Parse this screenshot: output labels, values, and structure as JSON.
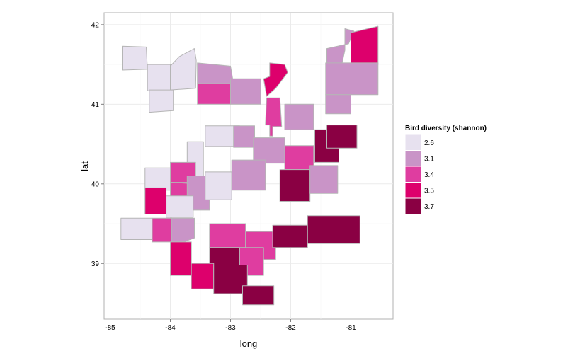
{
  "chart_data": {
    "type": "choropleth",
    "xlabel": "long",
    "ylabel": "lat",
    "xlim": [
      -85.1,
      -80.3
    ],
    "ylim": [
      38.3,
      42.15
    ],
    "x_ticks": [
      "-85",
      "-84",
      "-83",
      "-82",
      "-81"
    ],
    "y_ticks": [
      "39",
      "40",
      "41",
      "42"
    ],
    "x_tick_values": [
      -85,
      -84,
      -83,
      -82,
      -81
    ],
    "y_tick_values": [
      39,
      40,
      41,
      42
    ],
    "grid": true,
    "legend": {
      "title": "Bird diversity (shannon)",
      "placement": "right",
      "entries": [
        {
          "label": "2.6",
          "color": "#e7e1ef"
        },
        {
          "label": "3.1",
          "color": "#c994c7"
        },
        {
          "label": "3.4",
          "color": "#df3da0"
        },
        {
          "label": "3.5",
          "color": "#dd006c"
        },
        {
          "label": "3.7",
          "color": "#8a0043"
        }
      ]
    },
    "regions": [
      {
        "value": "2.6",
        "coords": [
          [
            -84.8,
            41.73
          ],
          [
            -84.4,
            41.72
          ],
          [
            -84.38,
            41.44
          ],
          [
            -84.8,
            41.43
          ]
        ]
      },
      {
        "value": "2.6",
        "coords": [
          [
            -84.38,
            41.5
          ],
          [
            -84.0,
            41.5
          ],
          [
            -84.0,
            41.17
          ],
          [
            -84.38,
            41.17
          ]
        ]
      },
      {
        "value": "2.6",
        "coords": [
          [
            -84.0,
            41.48
          ],
          [
            -83.85,
            41.6
          ],
          [
            -83.6,
            41.7
          ],
          [
            -83.57,
            41.55
          ],
          [
            -83.58,
            41.2
          ],
          [
            -84.0,
            41.18
          ]
        ]
      },
      {
        "value": "2.6",
        "coords": [
          [
            -84.35,
            41.18
          ],
          [
            -83.95,
            41.18
          ],
          [
            -83.95,
            40.92
          ],
          [
            -84.35,
            40.9
          ]
        ]
      },
      {
        "value": "3.1",
        "coords": [
          [
            -83.55,
            41.52
          ],
          [
            -83.0,
            41.48
          ],
          [
            -82.95,
            41.26
          ],
          [
            -83.55,
            41.26
          ]
        ]
      },
      {
        "value": "3.4",
        "coords": [
          [
            -83.55,
            41.26
          ],
          [
            -83.0,
            41.26
          ],
          [
            -83.0,
            41.0
          ],
          [
            -83.55,
            41.0
          ]
        ]
      },
      {
        "value": "3.1",
        "coords": [
          [
            -83.0,
            41.32
          ],
          [
            -82.5,
            41.32
          ],
          [
            -82.5,
            41.0
          ],
          [
            -83.0,
            41.0
          ]
        ]
      },
      {
        "value": "3.5",
        "coords": [
          [
            -82.35,
            41.52
          ],
          [
            -82.1,
            41.5
          ],
          [
            -82.05,
            41.4
          ],
          [
            -82.25,
            41.2
          ],
          [
            -82.4,
            41.1
          ],
          [
            -82.45,
            41.32
          ],
          [
            -82.35,
            41.35
          ]
        ]
      },
      {
        "value": "3.4",
        "coords": [
          [
            -82.4,
            41.08
          ],
          [
            -82.18,
            41.08
          ],
          [
            -82.15,
            40.72
          ],
          [
            -82.3,
            40.72
          ],
          [
            -82.3,
            40.6
          ],
          [
            -82.35,
            40.6
          ],
          [
            -82.35,
            40.74
          ],
          [
            -82.42,
            40.74
          ]
        ]
      },
      {
        "value": "3.1",
        "coords": [
          [
            -82.1,
            41.0
          ],
          [
            -81.62,
            41.0
          ],
          [
            -81.62,
            40.68
          ],
          [
            -82.1,
            40.68
          ]
        ]
      },
      {
        "value": "3.1",
        "coords": [
          [
            -81.04,
            41.76
          ],
          [
            -80.95,
            41.92
          ],
          [
            -81.1,
            41.95
          ],
          [
            -81.1,
            41.68
          ],
          [
            -81.15,
            41.5
          ],
          [
            -81.4,
            41.52
          ],
          [
            -81.4,
            41.7
          ]
        ]
      },
      {
        "value": "3.5",
        "coords": [
          [
            -81.0,
            41.9
          ],
          [
            -80.55,
            41.98
          ],
          [
            -80.55,
            41.5
          ],
          [
            -81.0,
            41.5
          ]
        ]
      },
      {
        "value": "3.1",
        "coords": [
          [
            -81.42,
            41.52
          ],
          [
            -81.0,
            41.52
          ],
          [
            -81.0,
            41.12
          ],
          [
            -81.42,
            41.12
          ]
        ]
      },
      {
        "value": "3.1",
        "coords": [
          [
            -81.0,
            41.52
          ],
          [
            -80.55,
            41.52
          ],
          [
            -80.55,
            41.12
          ],
          [
            -81.0,
            41.12
          ]
        ]
      },
      {
        "value": "3.1",
        "coords": [
          [
            -81.42,
            41.12
          ],
          [
            -81.0,
            41.12
          ],
          [
            -81.0,
            40.88
          ],
          [
            -81.42,
            40.88
          ]
        ]
      },
      {
        "value": "2.6",
        "coords": [
          [
            -83.42,
            40.73
          ],
          [
            -82.85,
            40.73
          ],
          [
            -82.85,
            40.47
          ],
          [
            -83.42,
            40.47
          ]
        ]
      },
      {
        "value": "3.1",
        "coords": [
          [
            -82.95,
            40.73
          ],
          [
            -82.6,
            40.73
          ],
          [
            -82.6,
            40.46
          ],
          [
            -82.95,
            40.46
          ]
        ]
      },
      {
        "value": "3.1",
        "coords": [
          [
            -82.62,
            40.58
          ],
          [
            -82.1,
            40.58
          ],
          [
            -82.1,
            40.26
          ],
          [
            -82.62,
            40.26
          ]
        ]
      },
      {
        "value": "3.7",
        "coords": [
          [
            -81.6,
            40.68
          ],
          [
            -81.2,
            40.68
          ],
          [
            -81.2,
            40.27
          ],
          [
            -81.6,
            40.27
          ]
        ]
      },
      {
        "value": "3.7",
        "coords": [
          [
            -81.4,
            40.74
          ],
          [
            -80.9,
            40.74
          ],
          [
            -80.9,
            40.45
          ],
          [
            -81.4,
            40.45
          ]
        ]
      },
      {
        "value": "3.4",
        "coords": [
          [
            -82.1,
            40.48
          ],
          [
            -81.62,
            40.48
          ],
          [
            -81.62,
            40.18
          ],
          [
            -82.1,
            40.18
          ]
        ]
      },
      {
        "value": "2.6",
        "coords": [
          [
            -83.72,
            40.53
          ],
          [
            -83.45,
            40.53
          ],
          [
            -83.45,
            40.1
          ],
          [
            -83.72,
            40.1
          ]
        ]
      },
      {
        "value": "3.4",
        "coords": [
          [
            -84.0,
            40.27
          ],
          [
            -83.58,
            40.27
          ],
          [
            -83.58,
            40.02
          ],
          [
            -84.0,
            40.02
          ]
        ]
      },
      {
        "value": "2.6",
        "coords": [
          [
            -84.42,
            40.2
          ],
          [
            -84.0,
            40.2
          ],
          [
            -84.0,
            39.92
          ],
          [
            -84.42,
            39.92
          ]
        ]
      },
      {
        "value": "3.4",
        "coords": [
          [
            -84.0,
            40.02
          ],
          [
            -83.55,
            40.0
          ],
          [
            -83.55,
            39.78
          ],
          [
            -84.0,
            39.78
          ]
        ]
      },
      {
        "value": "3.1",
        "coords": [
          [
            -83.72,
            40.1
          ],
          [
            -83.35,
            40.1
          ],
          [
            -83.35,
            39.67
          ],
          [
            -83.72,
            39.67
          ]
        ]
      },
      {
        "value": "2.6",
        "coords": [
          [
            -83.42,
            40.15
          ],
          [
            -82.98,
            40.15
          ],
          [
            -82.98,
            39.8
          ],
          [
            -83.42,
            39.8
          ]
        ]
      },
      {
        "value": "3.1",
        "coords": [
          [
            -82.98,
            40.3
          ],
          [
            -82.42,
            40.3
          ],
          [
            -82.42,
            39.92
          ],
          [
            -82.98,
            39.92
          ]
        ]
      },
      {
        "value": "3.7",
        "coords": [
          [
            -82.18,
            40.18
          ],
          [
            -81.68,
            40.18
          ],
          [
            -81.68,
            39.78
          ],
          [
            -82.18,
            39.78
          ]
        ]
      },
      {
        "value": "3.1",
        "coords": [
          [
            -81.68,
            40.23
          ],
          [
            -81.22,
            40.23
          ],
          [
            -81.22,
            39.88
          ],
          [
            -81.68,
            39.88
          ]
        ]
      },
      {
        "value": "3.5",
        "coords": [
          [
            -84.42,
            39.95
          ],
          [
            -84.07,
            39.95
          ],
          [
            -84.07,
            39.62
          ],
          [
            -84.42,
            39.62
          ]
        ]
      },
      {
        "value": "2.6",
        "coords": [
          [
            -84.07,
            39.85
          ],
          [
            -83.62,
            39.85
          ],
          [
            -83.62,
            39.58
          ],
          [
            -84.07,
            39.58
          ]
        ]
      },
      {
        "value": "2.6",
        "coords": [
          [
            -84.82,
            39.57
          ],
          [
            -84.3,
            39.57
          ],
          [
            -84.3,
            39.3
          ],
          [
            -84.82,
            39.3
          ]
        ]
      },
      {
        "value": "3.4",
        "coords": [
          [
            -84.3,
            39.57
          ],
          [
            -83.98,
            39.57
          ],
          [
            -83.98,
            39.27
          ],
          [
            -84.3,
            39.27
          ]
        ]
      },
      {
        "value": "3.1",
        "coords": [
          [
            -83.98,
            39.57
          ],
          [
            -83.6,
            39.57
          ],
          [
            -83.6,
            39.32
          ],
          [
            -83.78,
            39.27
          ],
          [
            -83.98,
            39.27
          ]
        ]
      },
      {
        "value": "3.4",
        "coords": [
          [
            -83.35,
            39.5
          ],
          [
            -82.75,
            39.5
          ],
          [
            -82.75,
            39.2
          ],
          [
            -83.35,
            39.2
          ]
        ]
      },
      {
        "value": "3.4",
        "coords": [
          [
            -82.75,
            39.4
          ],
          [
            -82.25,
            39.4
          ],
          [
            -82.25,
            39.05
          ],
          [
            -82.75,
            39.05
          ]
        ]
      },
      {
        "value": "3.4",
        "coords": [
          [
            -82.85,
            39.2
          ],
          [
            -82.45,
            39.2
          ],
          [
            -82.45,
            38.85
          ],
          [
            -82.85,
            38.85
          ]
        ]
      },
      {
        "value": "3.7",
        "coords": [
          [
            -83.35,
            39.2
          ],
          [
            -82.85,
            39.2
          ],
          [
            -82.85,
            38.97
          ],
          [
            -83.35,
            38.97
          ]
        ]
      },
      {
        "value": "3.7",
        "coords": [
          [
            -82.3,
            39.48
          ],
          [
            -81.72,
            39.48
          ],
          [
            -81.72,
            39.2
          ],
          [
            -82.3,
            39.2
          ]
        ]
      },
      {
        "value": "3.7",
        "coords": [
          [
            -81.72,
            39.6
          ],
          [
            -80.85,
            39.6
          ],
          [
            -80.85,
            39.25
          ],
          [
            -81.72,
            39.25
          ]
        ]
      },
      {
        "value": "3.5",
        "coords": [
          [
            -84.0,
            39.27
          ],
          [
            -83.65,
            39.27
          ],
          [
            -83.65,
            38.85
          ],
          [
            -84.0,
            38.85
          ]
        ]
      },
      {
        "value": "3.5",
        "coords": [
          [
            -83.65,
            39.0
          ],
          [
            -83.28,
            39.0
          ],
          [
            -83.28,
            38.68
          ],
          [
            -83.65,
            38.68
          ]
        ]
      },
      {
        "value": "3.7",
        "coords": [
          [
            -83.28,
            38.98
          ],
          [
            -82.72,
            38.98
          ],
          [
            -82.72,
            38.62
          ],
          [
            -83.28,
            38.62
          ]
        ]
      },
      {
        "value": "3.7",
        "coords": [
          [
            -82.8,
            38.72
          ],
          [
            -82.28,
            38.72
          ],
          [
            -82.28,
            38.48
          ],
          [
            -82.8,
            38.48
          ]
        ]
      }
    ]
  }
}
